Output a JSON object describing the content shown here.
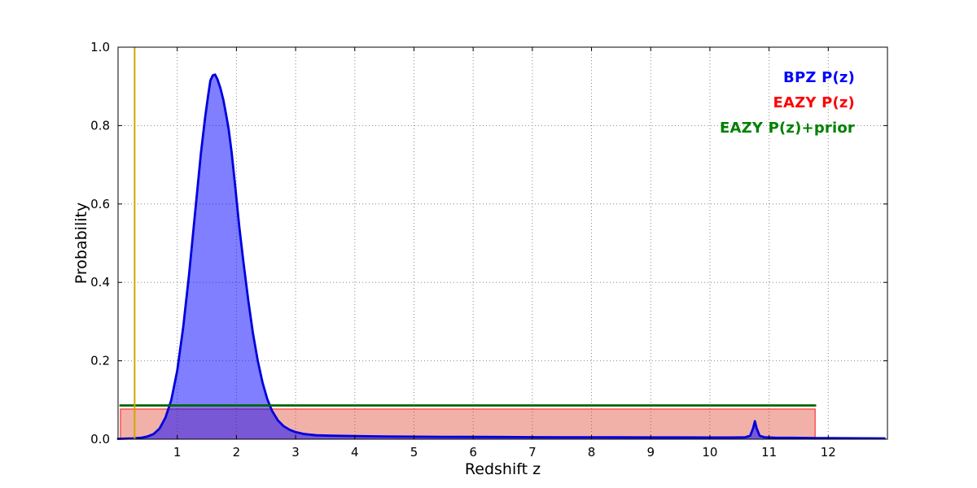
{
  "figure": {
    "background": "#ffffff"
  },
  "chart_data": {
    "type": "line",
    "title": "",
    "xlabel": "Redshift z",
    "ylabel": "Probability",
    "xlim": [
      0,
      13
    ],
    "ylim": [
      0,
      1.0
    ],
    "xticks": [
      1,
      2,
      3,
      4,
      5,
      6,
      7,
      8,
      9,
      10,
      11,
      12
    ],
    "yticks": [
      0,
      0.2,
      0.4,
      0.6,
      0.8,
      1.0
    ],
    "ytick_labels": [
      "0.0",
      "0.2",
      "0.4",
      "0.6",
      "0.8",
      "1.0"
    ],
    "grid": true,
    "grid_color": "#888888",
    "legend_position": "top-right",
    "legend": [
      {
        "label": "BPZ P(z)",
        "color": "#0000ff"
      },
      {
        "label": "EAZY P(z)",
        "color": "#ff0000"
      },
      {
        "label": "EAZY P(z)+prior",
        "color": "#008000"
      }
    ],
    "series": [
      {
        "name": "EAZY P(z)",
        "kind": "area",
        "line_color": "rgba(255,0,0,0.6)",
        "fill_color": "rgba(220,60,40,0.40)",
        "line_width": 1.5,
        "points": [
          [
            0.04,
            0.0
          ],
          [
            0.04,
            0.077
          ],
          [
            11.78,
            0.077
          ],
          [
            11.78,
            0.0
          ]
        ]
      },
      {
        "name": "BPZ P(z)",
        "kind": "area",
        "line_color": "#0000dd",
        "fill_color": "rgba(0,0,255,0.5)",
        "line_width": 2.8,
        "points": [
          [
            0.0,
            0.001
          ],
          [
            0.25,
            0.002
          ],
          [
            0.4,
            0.004
          ],
          [
            0.5,
            0.007
          ],
          [
            0.6,
            0.013
          ],
          [
            0.7,
            0.027
          ],
          [
            0.8,
            0.055
          ],
          [
            0.9,
            0.1
          ],
          [
            1.0,
            0.175
          ],
          [
            1.1,
            0.285
          ],
          [
            1.2,
            0.42
          ],
          [
            1.3,
            0.575
          ],
          [
            1.4,
            0.73
          ],
          [
            1.47,
            0.82
          ],
          [
            1.52,
            0.875
          ],
          [
            1.56,
            0.915
          ],
          [
            1.6,
            0.928
          ],
          [
            1.64,
            0.93
          ],
          [
            1.68,
            0.918
          ],
          [
            1.73,
            0.895
          ],
          [
            1.78,
            0.865
          ],
          [
            1.83,
            0.825
          ],
          [
            1.87,
            0.79
          ],
          [
            1.92,
            0.73
          ],
          [
            1.98,
            0.645
          ],
          [
            2.05,
            0.54
          ],
          [
            2.12,
            0.45
          ],
          [
            2.2,
            0.355
          ],
          [
            2.28,
            0.27
          ],
          [
            2.36,
            0.2
          ],
          [
            2.44,
            0.145
          ],
          [
            2.52,
            0.103
          ],
          [
            2.6,
            0.073
          ],
          [
            2.7,
            0.048
          ],
          [
            2.8,
            0.033
          ],
          [
            2.9,
            0.024
          ],
          [
            3.0,
            0.018
          ],
          [
            3.15,
            0.013
          ],
          [
            3.35,
            0.01
          ],
          [
            3.6,
            0.009
          ],
          [
            4.0,
            0.008
          ],
          [
            4.5,
            0.007
          ],
          [
            5.0,
            0.0065
          ],
          [
            5.5,
            0.006
          ],
          [
            6.0,
            0.0058
          ],
          [
            6.5,
            0.0055
          ],
          [
            7.0,
            0.0052
          ],
          [
            7.5,
            0.005
          ],
          [
            8.0,
            0.005
          ],
          [
            8.5,
            0.0048
          ],
          [
            9.0,
            0.0046
          ],
          [
            9.5,
            0.0045
          ],
          [
            10.0,
            0.0044
          ],
          [
            10.4,
            0.0043
          ],
          [
            10.6,
            0.005
          ],
          [
            10.68,
            0.009
          ],
          [
            10.73,
            0.028
          ],
          [
            10.76,
            0.046
          ],
          [
            10.79,
            0.028
          ],
          [
            10.84,
            0.009
          ],
          [
            10.92,
            0.005
          ],
          [
            11.1,
            0.004
          ],
          [
            11.4,
            0.0035
          ],
          [
            11.8,
            0.003
          ],
          [
            12.3,
            0.0025
          ],
          [
            12.95,
            0.002
          ]
        ]
      },
      {
        "name": "EAZY P(z)+prior",
        "kind": "line",
        "line_color": "#006400",
        "line_width": 2.8,
        "points": [
          [
            0.04,
            0.086
          ],
          [
            11.78,
            0.086
          ]
        ]
      },
      {
        "name": "redshift-marker",
        "kind": "vline",
        "line_color": "#ccaa00",
        "line_width": 2,
        "x": 0.28
      }
    ]
  }
}
